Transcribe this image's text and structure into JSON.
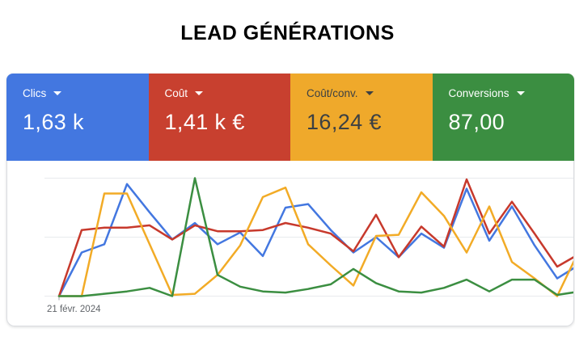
{
  "page": {
    "title": "LEAD GÉNÉRATIONS"
  },
  "metric_cards": [
    {
      "label": "Clics",
      "value": "1,63 k",
      "bg_color": "#4377E0",
      "text_color": "#FFFFFF"
    },
    {
      "label": "Coût",
      "value": "1,41 k €",
      "bg_color": "#C8402F",
      "text_color": "#FFFFFF"
    },
    {
      "label": "Coût/conv.",
      "value": "16,24 €",
      "bg_color": "#EFA92B",
      "text_color": "#3C4043"
    },
    {
      "label": "Conversions",
      "value": "87,00",
      "bg_color": "#3B8E41",
      "text_color": "#FFFFFF"
    }
  ],
  "chart_data": {
    "type": "line",
    "title": "",
    "x_first_label": "21 févr. 2024",
    "x_points": 24,
    "x_note": "only the first x tick is labeled; last point runs off the right edge of the image",
    "y_note": "no y-axis labels; each series normalized 0-100 of plot height (gridlines at 0, 50, 100)",
    "ylim": [
      0,
      100
    ],
    "grid": {
      "horizontal_gridlines": 3,
      "gridline_color": "#E8EAED"
    },
    "legend_position": "metric cards above chart",
    "series": [
      {
        "name": "Clics",
        "color": "#4377E0",
        "values": [
          0,
          37,
          44,
          95,
          71,
          48,
          62,
          44,
          54,
          34,
          75,
          78,
          56,
          37,
          50,
          33,
          53,
          41,
          91,
          47,
          76,
          43,
          15,
          27
        ]
      },
      {
        "name": "Coût",
        "color": "#C7392C",
        "values": [
          0,
          56,
          58,
          58,
          60,
          48,
          60,
          55,
          55,
          56,
          62,
          58,
          53,
          38,
          69,
          33,
          59,
          42,
          99,
          53,
          80,
          53,
          25,
          36
        ]
      },
      {
        "name": "Coût/conv.",
        "color": "#F2AB26",
        "values": [
          0,
          0,
          87,
          87,
          44,
          1,
          2,
          18,
          43,
          84,
          92,
          44,
          26,
          9,
          51,
          52,
          88,
          68,
          37,
          76,
          29,
          15,
          0,
          40
        ]
      },
      {
        "name": "Conversions",
        "color": "#3B8E41",
        "values": [
          0,
          0,
          2,
          4,
          7,
          0,
          100,
          18,
          8,
          4,
          3,
          6,
          10,
          23,
          11,
          4,
          3,
          7,
          14,
          4,
          14,
          14,
          1,
          4
        ]
      }
    ]
  }
}
